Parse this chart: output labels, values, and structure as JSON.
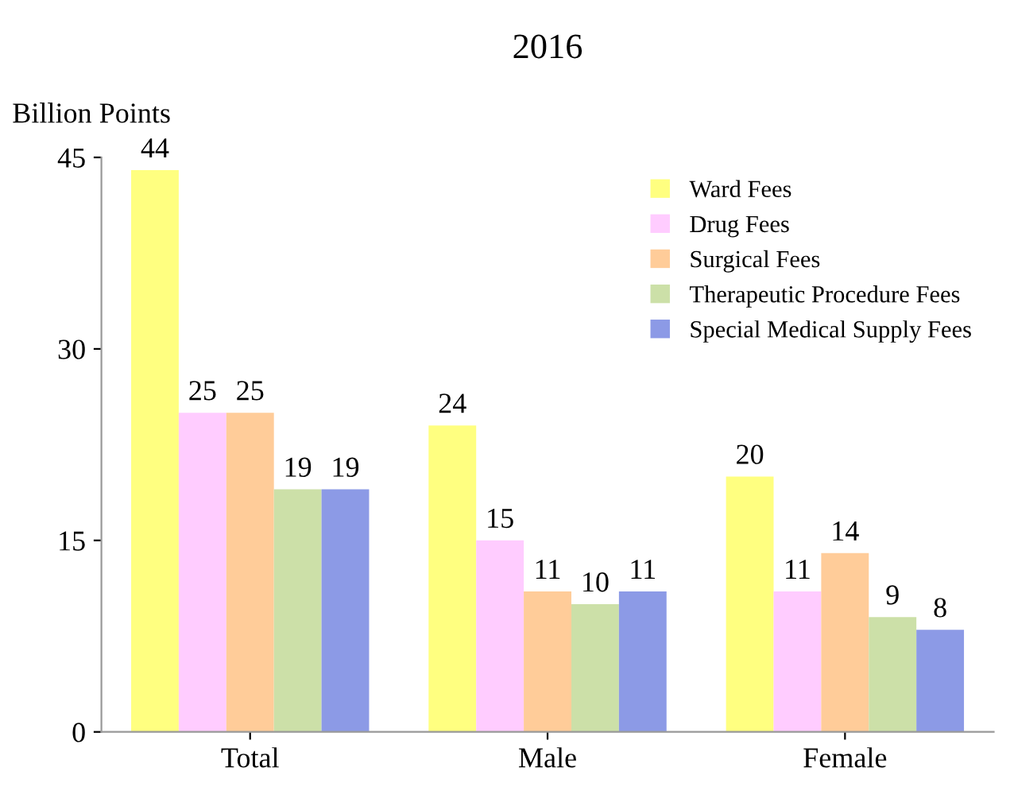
{
  "chart_data": {
    "type": "bar",
    "title": "2016",
    "ylabel": "Billion Points",
    "categories": [
      "Total",
      "Male",
      "Female"
    ],
    "series": [
      {
        "name": "Ward Fees",
        "color": "#ffff80",
        "values": [
          44,
          24,
          20
        ]
      },
      {
        "name": "Drug Fees",
        "color": "#ffccff",
        "values": [
          25,
          15,
          11
        ]
      },
      {
        "name": "Surgical Fees",
        "color": "#ffcc99",
        "values": [
          25,
          11,
          14
        ]
      },
      {
        "name": "Therapeutic Procedure Fees",
        "color": "#cce0a8",
        "values": [
          19,
          10,
          9
        ]
      },
      {
        "name": "Special Medical Supply Fees",
        "color": "#8c9ae6",
        "values": [
          19,
          11,
          8
        ]
      }
    ],
    "ylim": [
      0,
      45
    ],
    "yticks": [
      0,
      15,
      30,
      45
    ],
    "grid": false,
    "legend": "top right",
    "data_labels": true
  }
}
